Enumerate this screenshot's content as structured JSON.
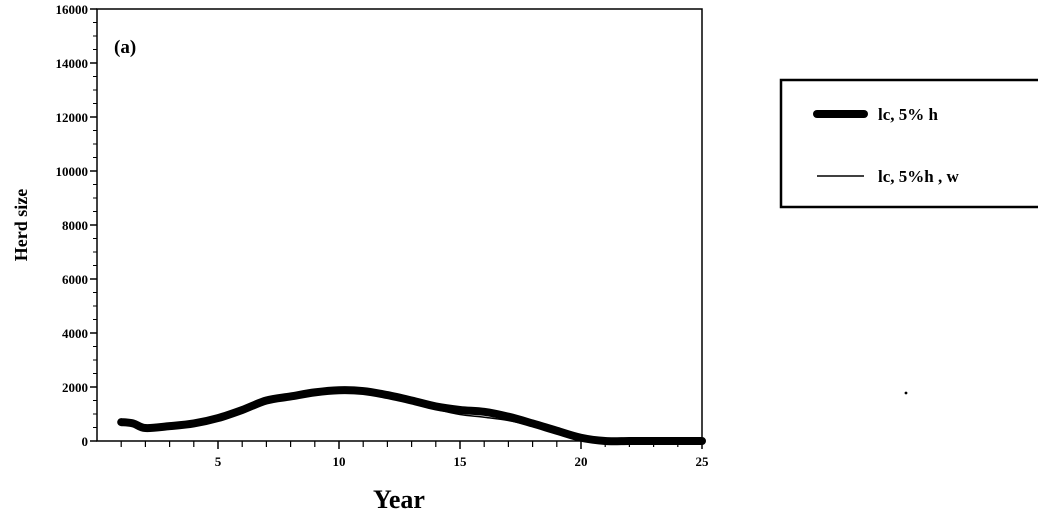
{
  "chart_data": {
    "type": "line",
    "panel_label": "(a)",
    "xlabel": "Year",
    "ylabel": "Herd size",
    "xlim": [
      0,
      25
    ],
    "ylim": [
      0,
      16000
    ],
    "x_ticks": [
      5,
      10,
      15,
      20,
      25
    ],
    "y_ticks": [
      0,
      2000,
      4000,
      6000,
      8000,
      10000,
      12000,
      14000,
      16000
    ],
    "grid": false,
    "legend_position": "right, outside plot",
    "series": [
      {
        "name": "lc, 5% h",
        "style": "thick",
        "color": "#000000",
        "x": [
          1,
          1.5,
          2,
          3,
          4,
          5,
          6,
          7,
          8,
          9,
          10,
          11,
          12,
          13,
          14,
          15,
          16,
          17,
          18,
          19,
          20,
          21,
          22,
          23,
          24,
          25
        ],
        "y": [
          700,
          650,
          480,
          550,
          650,
          850,
          1150,
          1500,
          1650,
          1800,
          1880,
          1850,
          1700,
          1500,
          1280,
          1150,
          1080,
          900,
          650,
          380,
          120,
          0,
          0,
          0,
          0,
          0
        ]
      },
      {
        "name": "lc, 5%h , w",
        "style": "thin",
        "color": "#000000",
        "x": [
          1,
          1.5,
          2,
          3,
          4,
          5,
          6,
          7,
          8,
          9,
          10,
          11,
          12,
          13,
          14,
          15,
          16,
          17,
          18,
          19,
          20,
          21,
          22,
          23,
          24,
          25
        ],
        "y": [
          700,
          650,
          480,
          550,
          650,
          850,
          1150,
          1500,
          1650,
          1800,
          1860,
          1800,
          1650,
          1420,
          1180,
          980,
          880,
          760,
          560,
          330,
          100,
          0,
          0,
          0,
          0,
          0
        ]
      }
    ]
  }
}
